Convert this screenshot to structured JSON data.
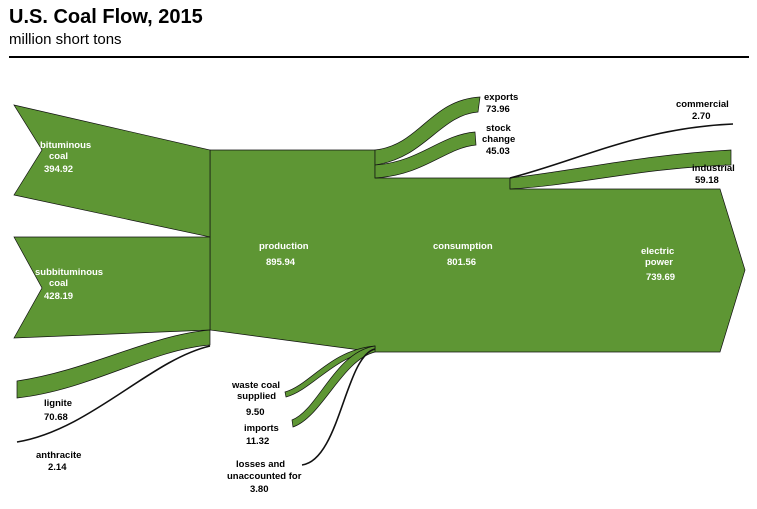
{
  "header": {
    "title": "U.S. Coal Flow, 2015",
    "subtitle": "million short tons"
  },
  "colors": {
    "flow_fill": "#5e9634",
    "outline": "#111111",
    "background": "#ffffff"
  },
  "chart_data": {
    "type": "sankey",
    "units": "million short tons",
    "sources": [
      {
        "name": "bituminous coal",
        "value": 394.92
      },
      {
        "name": "subbituminous coal",
        "value": 428.19
      },
      {
        "name": "lignite",
        "value": 70.68
      },
      {
        "name": "anthracite",
        "value": 2.14
      }
    ],
    "production": {
      "name": "production",
      "value": 895.94
    },
    "supply_adjustments": [
      {
        "name": "waste coal supplied",
        "value": 9.5
      },
      {
        "name": "imports",
        "value": 11.32
      },
      {
        "name": "losses and unaccounted for",
        "value": 3.8
      }
    ],
    "outflows": [
      {
        "name": "exports",
        "value": 73.96
      },
      {
        "name": "stock change",
        "value": 45.03
      }
    ],
    "consumption": {
      "name": "consumption",
      "value": 801.56
    },
    "sectors": [
      {
        "name": "commercial",
        "value": 2.7
      },
      {
        "name": "industrial",
        "value": 59.18
      },
      {
        "name": "electric power",
        "value": 739.69
      }
    ]
  },
  "labels": {
    "bituminous": {
      "line1": "bituminous",
      "line2": "coal",
      "value": "394.92"
    },
    "subbituminous": {
      "line1": "subbituminous",
      "line2": "coal",
      "value": "428.19"
    },
    "production": {
      "name": "production",
      "value": "895.94"
    },
    "consumption": {
      "name": "consumption",
      "value": "801.56"
    },
    "electric": {
      "line1": "electric",
      "line2": "power",
      "value": "739.69"
    },
    "exports": {
      "name": "exports",
      "value": "73.96"
    },
    "stock": {
      "line1": "stock",
      "line2": "change",
      "value": "45.03"
    },
    "commercial": {
      "name": "commercial",
      "value": "2.70"
    },
    "industrial": {
      "name": "industrial",
      "value": "59.18"
    },
    "lignite": {
      "name": "lignite",
      "value": "70.68"
    },
    "anthracite": {
      "name": "anthracite",
      "value": "2.14"
    },
    "waste": {
      "line1": "waste coal",
      "line2": "supplied",
      "value": "9.50"
    },
    "imports": {
      "name": "imports",
      "value": "11.32"
    },
    "losses": {
      "line1": "losses and",
      "line2": "unaccounted for",
      "value": "3.80"
    }
  }
}
